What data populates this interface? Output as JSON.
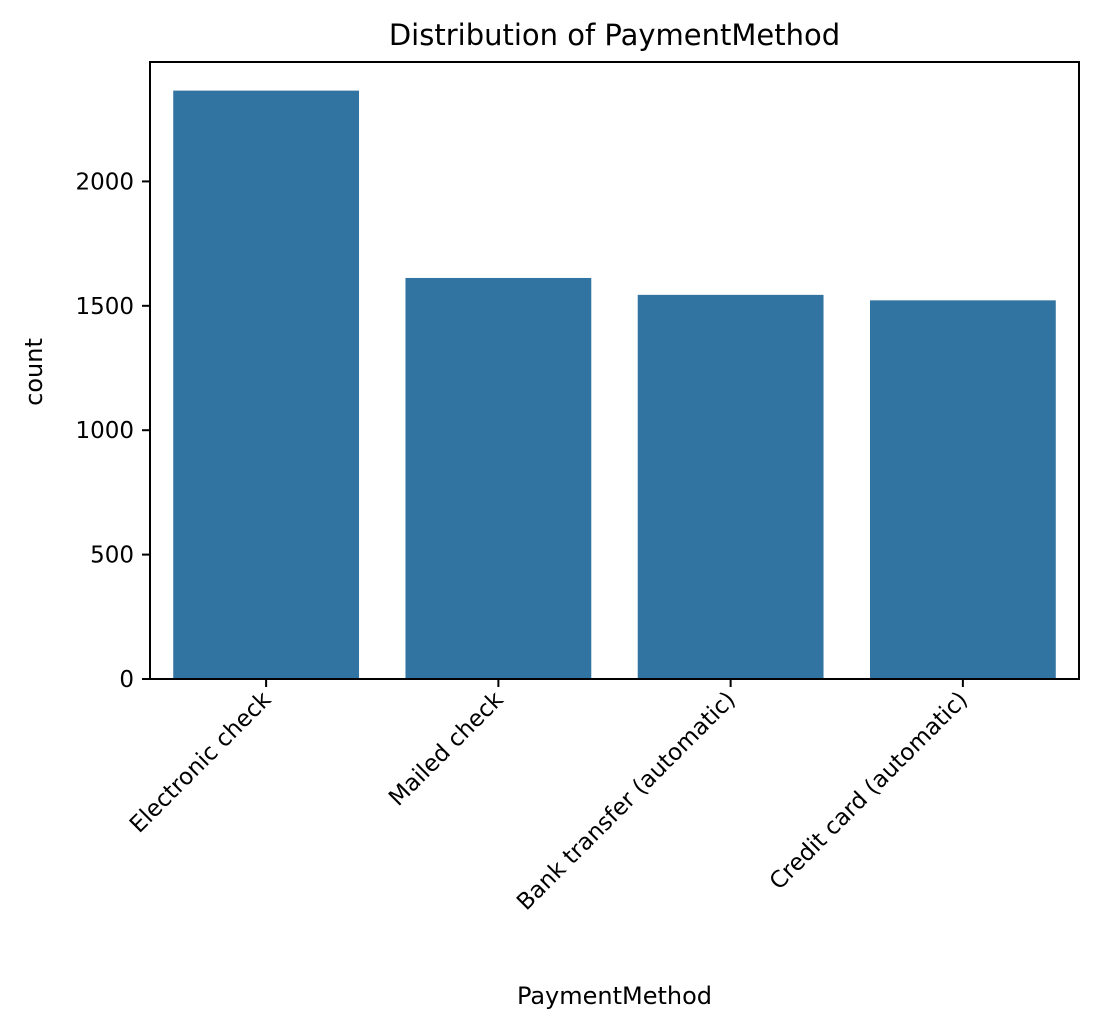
{
  "chart_data": {
    "type": "bar",
    "title": "Distribution of PaymentMethod",
    "xlabel": "PaymentMethod",
    "ylabel": "count",
    "categories": [
      "Electronic check",
      "Mailed check",
      "Bank transfer (automatic)",
      "Credit card (automatic)"
    ],
    "values": [
      2365,
      1612,
      1544,
      1522
    ],
    "ylim": [
      0,
      2480
    ],
    "yticks": [
      0,
      500,
      1000,
      1500,
      2000
    ],
    "grid": false,
    "bar_color": "#3274a1"
  }
}
